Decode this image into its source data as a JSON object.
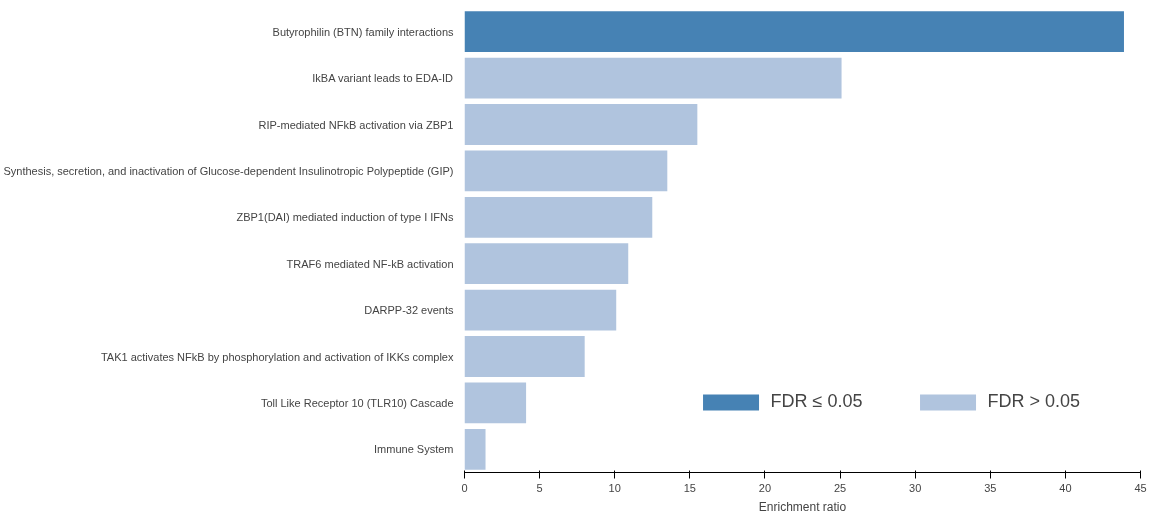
{
  "chart_data": {
    "type": "bar",
    "orientation": "horizontal",
    "xlabel": "Enrichment ratio",
    "categories": [
      "Butyrophilin (BTN) family interactions",
      "IkBA variant leads to EDA-ID",
      "RIP-mediated NFkB activation via ZBP1",
      "Synthesis, secretion, and inactivation of Glucose-dependent Insulinotropic Polypeptide (GIP)",
      "ZBP1(DAI) mediated induction of type I IFNs",
      "TRAF6 mediated NF-kB activation",
      "DARPP-32 events",
      "TAK1 activates NFkB by phosphorylation and activation of IKKs complex",
      "Toll Like Receptor 10 (TLR10) Cascade",
      "Immune System"
    ],
    "series": [
      {
        "name": "FDR ≤ 0.05",
        "color": "#4682b4",
        "values": [
          43.9,
          null,
          null,
          null,
          null,
          null,
          null,
          null,
          null,
          null
        ]
      },
      {
        "name": "FDR > 0.05",
        "color": "#b0c4de",
        "values": [
          null,
          25.1,
          15.5,
          13.5,
          12.5,
          10.9,
          10.1,
          8.0,
          4.1,
          1.4
        ]
      }
    ],
    "xlim": [
      0,
      45
    ],
    "xticks": [
      0,
      5,
      10,
      15,
      20,
      25,
      30,
      35,
      40,
      45
    ],
    "grid": false,
    "legend": "bottom right"
  }
}
